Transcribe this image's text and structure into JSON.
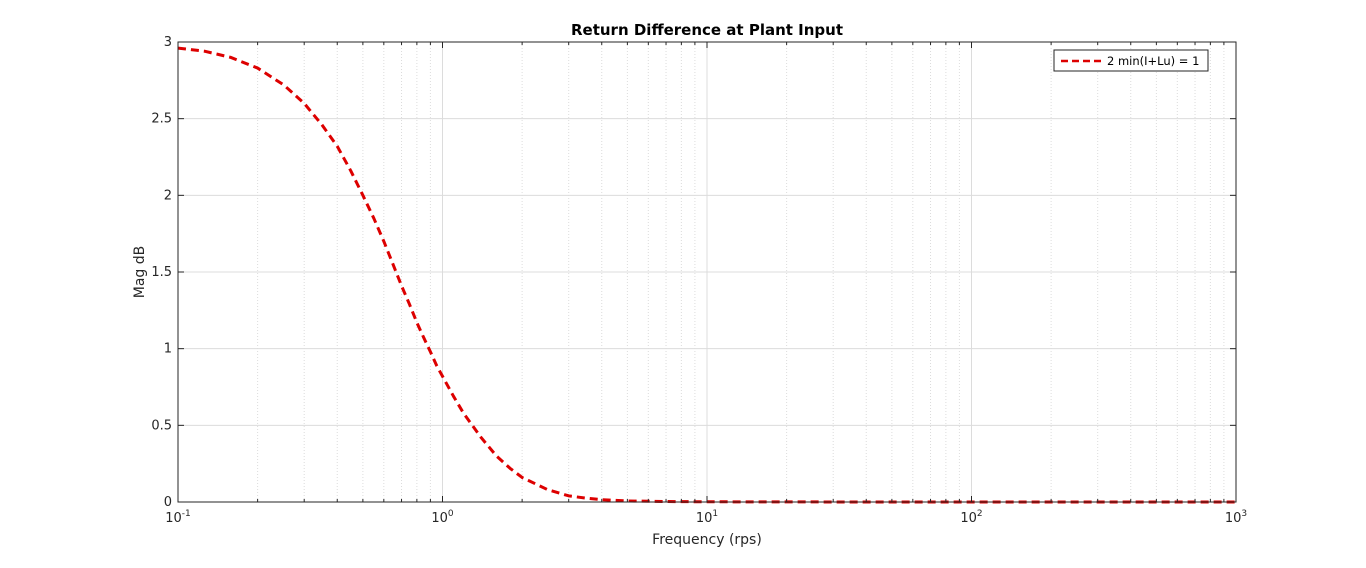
{
  "chart_data": {
    "type": "line",
    "title": "Return Difference at Plant Input",
    "xlabel": "Frequency (rps)",
    "ylabel": "Mag dB",
    "x_scale": "log",
    "xlim": [
      0.1,
      1000
    ],
    "ylim": [
      0,
      3
    ],
    "x_ticks": [
      {
        "value": 0.1,
        "base": "10",
        "exp": "-1"
      },
      {
        "value": 1,
        "base": "10",
        "exp": "0"
      },
      {
        "value": 10,
        "base": "10",
        "exp": "1"
      },
      {
        "value": 100,
        "base": "10",
        "exp": "2"
      },
      {
        "value": 1000,
        "base": "10",
        "exp": "3"
      }
    ],
    "y_ticks": [
      {
        "value": 0,
        "label": "0"
      },
      {
        "value": 0.5,
        "label": "0.5"
      },
      {
        "value": 1,
        "label": "1"
      },
      {
        "value": 1.5,
        "label": "1.5"
      },
      {
        "value": 2,
        "label": "2"
      },
      {
        "value": 2.5,
        "label": "2.5"
      },
      {
        "value": 3,
        "label": "3"
      }
    ],
    "grid": true,
    "minor_grid": true,
    "legend_position": "top-right",
    "series": [
      {
        "name": "2 min(I+Lu) = 1",
        "color": "#dd0000",
        "line_style": "dashed",
        "x": [
          0.1,
          0.126,
          0.158,
          0.2,
          0.251,
          0.3,
          0.35,
          0.4,
          0.45,
          0.5,
          0.55,
          0.6,
          0.65,
          0.7,
          0.75,
          0.8,
          0.85,
          0.9,
          0.95,
          1.0,
          1.1,
          1.2,
          1.4,
          1.6,
          1.8,
          2.0,
          2.5,
          3.0,
          3.5,
          4.0,
          5.0,
          7.0,
          10,
          20,
          50,
          100,
          200,
          500,
          1000
        ],
        "y": [
          2.96,
          2.94,
          2.9,
          2.83,
          2.72,
          2.6,
          2.46,
          2.32,
          2.16,
          2.0,
          1.85,
          1.7,
          1.55,
          1.41,
          1.29,
          1.17,
          1.07,
          0.98,
          0.89,
          0.82,
          0.69,
          0.58,
          0.42,
          0.3,
          0.22,
          0.16,
          0.08,
          0.04,
          0.025,
          0.015,
          0.007,
          0.003,
          0.0015,
          0.0005,
          0.0002,
          0.0001,
          0.0001,
          0.0001,
          0.0001
        ]
      }
    ]
  }
}
